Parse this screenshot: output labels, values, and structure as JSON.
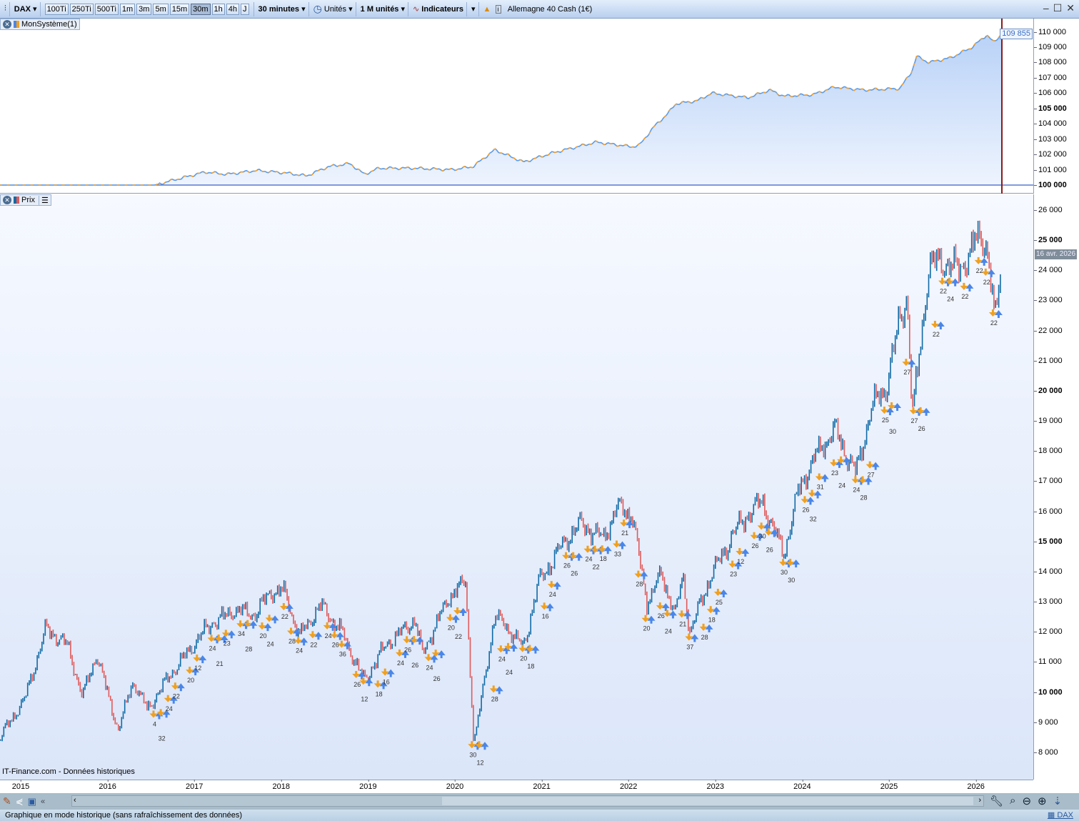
{
  "toolbar": {
    "symbol": "DAX",
    "periods": [
      "100Ti",
      "250Ti",
      "500Ti",
      "1m",
      "3m",
      "5m",
      "15m",
      "30m",
      "1h",
      "4h",
      "J"
    ],
    "active_period": "30m",
    "timeframe": "30 minutes",
    "units_label": "Unités",
    "units_count": "1 M unités",
    "indicators_label": "Indicateurs",
    "instrument": "Allemagne 40 Cash (1€)"
  },
  "equity_panel": {
    "title": "MonSystème(1)",
    "last_value": "109 855",
    "ticks": [
      "100 000",
      "101 000",
      "102 000",
      "103 000",
      "104 000",
      "105 000",
      "106 000",
      "107 000",
      "108 000",
      "109 000",
      "110 000"
    ],
    "colors": {
      "line": "#5b9be8",
      "alt": "#f0a030",
      "fill": "#cfe0fa",
      "cursor": "#8b1a1a"
    }
  },
  "price_panel": {
    "title": "Prix",
    "date_label": "16 avr. 2026",
    "ticks": [
      "8 000",
      "9 000",
      "10 000",
      "11 000",
      "12 000",
      "13 000",
      "14 000",
      "15 000",
      "16 000",
      "17 000",
      "18 000",
      "19 000",
      "20 000",
      "21 000",
      "22 000",
      "23 000",
      "24 000",
      "25 000",
      "26 000"
    ],
    "source": "IT-Finance.com - Données historiques",
    "colors": {
      "up": "#0f6aa6",
      "down": "#e05a5a",
      "sell_arrow": "#f0a020",
      "buy_arrow": "#4a86e8"
    }
  },
  "x_axis": [
    "2015",
    "2016",
    "2017",
    "2018",
    "2019",
    "2020",
    "2021",
    "2022",
    "2023",
    "2024",
    "2025",
    "2026"
  ],
  "status_bar": {
    "text": "Graphique en mode historique (sans rafraîchissement des données)",
    "symbol_link": "DAX"
  },
  "chart_data": [
    {
      "type": "area",
      "name": "MonSystème(1)",
      "ylim": [
        100000,
        110000
      ],
      "points": [
        [
          "2014-10",
          100000
        ],
        [
          "2016-07",
          100000
        ],
        [
          "2016-09",
          100250
        ],
        [
          "2017-02",
          100850
        ],
        [
          "2017-05",
          100700
        ],
        [
          "2017-09",
          100950
        ],
        [
          "2018-01",
          100800
        ],
        [
          "2018-04",
          100600
        ],
        [
          "2018-07",
          101200
        ],
        [
          "2018-10",
          101400
        ],
        [
          "2018-12",
          100700
        ],
        [
          "2019-02",
          101100
        ],
        [
          "2019-07",
          101100
        ],
        [
          "2019-12",
          101000
        ],
        [
          "2020-03",
          101200
        ],
        [
          "2020-06",
          102300
        ],
        [
          "2020-10",
          101500
        ],
        [
          "2021-02",
          102100
        ],
        [
          "2021-08",
          102800
        ],
        [
          "2022-01",
          102500
        ],
        [
          "2022-02",
          102600
        ],
        [
          "2022-04",
          103800
        ],
        [
          "2022-06",
          104700
        ],
        [
          "2022-07",
          105300
        ],
        [
          "2022-10",
          105500
        ],
        [
          "2022-12",
          106000
        ],
        [
          "2023-05",
          105700
        ],
        [
          "2023-08",
          106200
        ],
        [
          "2023-10",
          105800
        ],
        [
          "2024-02",
          105900
        ],
        [
          "2024-05",
          106400
        ],
        [
          "2024-09",
          106200
        ],
        [
          "2025-02",
          106300
        ],
        [
          "2025-04-05",
          107400
        ],
        [
          "2025-04-25",
          108400
        ],
        [
          "2025-06",
          108000
        ],
        [
          "2025-09",
          108300
        ],
        [
          "2025-12",
          109000
        ],
        [
          "2026-02",
          109800
        ],
        [
          "2026-03",
          109300
        ],
        [
          "2026-04-16",
          109855
        ]
      ]
    },
    {
      "type": "candlestick",
      "name": "Prix",
      "ylim": [
        7200,
        26500
      ],
      "points": [
        [
          "2014-10",
          8600
        ],
        [
          "2015-01",
          9700
        ],
        [
          "2015-04",
          12200
        ],
        [
          "2015-07",
          11500
        ],
        [
          "2015-09",
          9800
        ],
        [
          "2015-11",
          11300
        ],
        [
          "2016-02",
          8750
        ],
        [
          "2016-04",
          10300
        ],
        [
          "2016-06",
          9400
        ],
        [
          "2016-09",
          10600
        ],
        [
          "2016-12",
          11400
        ],
        [
          "2017-03",
          12300
        ],
        [
          "2017-06",
          12800
        ],
        [
          "2017-09",
          12500
        ],
        [
          "2017-11",
          13300
        ],
        [
          "2018-01",
          13400
        ],
        [
          "2018-03",
          11900
        ],
        [
          "2018-06",
          12800
        ],
        [
          "2018-09",
          12000
        ],
        [
          "2018-12",
          10400
        ],
        [
          "2019-03",
          11500
        ],
        [
          "2019-07",
          12500
        ],
        [
          "2019-08",
          11300
        ],
        [
          "2019-12",
          13200
        ],
        [
          "2020-02",
          13700
        ],
        [
          "2020-03-20",
          8300
        ],
        [
          "2020-06",
          12500
        ],
        [
          "2020-10",
          11500
        ],
        [
          "2020-12",
          13700
        ],
        [
          "2021-03",
          14700
        ],
        [
          "2021-06",
          15600
        ],
        [
          "2021-09",
          15200
        ],
        [
          "2021-11",
          16100
        ],
        [
          "2022-01",
          15800
        ],
        [
          "2022-03",
          13000
        ],
        [
          "2022-05",
          14000
        ],
        [
          "2022-07",
          12600
        ],
        [
          "2022-08",
          13800
        ],
        [
          "2022-09",
          11900
        ],
        [
          "2022-12",
          14000
        ],
        [
          "2023-03",
          15300
        ],
        [
          "2023-07",
          16300
        ],
        [
          "2023-10",
          14700
        ],
        [
          "2023-12",
          16700
        ],
        [
          "2024-03",
          18000
        ],
        [
          "2024-05",
          18800
        ],
        [
          "2024-08",
          17300
        ],
        [
          "2024-10",
          19300
        ],
        [
          "2024-12",
          20000
        ],
        [
          "2025-02",
          22500
        ],
        [
          "2025-03",
          23300
        ],
        [
          "2025-04-08",
          19200
        ],
        [
          "2025-06",
          24000
        ],
        [
          "2025-08",
          24200
        ],
        [
          "2025-10",
          24100
        ],
        [
          "2026-01",
          25200
        ],
        [
          "2026-02",
          24800
        ],
        [
          "2026-03-20",
          22100
        ],
        [
          "2026-04-16",
          24100
        ]
      ],
      "signals": [
        [
          "2016-07",
          "4"
        ],
        [
          "2016-08",
          "32"
        ],
        [
          "2016-09",
          "24"
        ],
        [
          "2016-10",
          "22"
        ],
        [
          "2016-12",
          "20"
        ],
        [
          "2017-01",
          "12"
        ],
        [
          "2017-03",
          "24"
        ],
        [
          "2017-04",
          "21"
        ],
        [
          "2017-05",
          "23"
        ],
        [
          "2017-07",
          "34"
        ],
        [
          "2017-08",
          "28"
        ],
        [
          "2017-10",
          "20"
        ],
        [
          "2017-11",
          "24"
        ],
        [
          "2018-01",
          "22"
        ],
        [
          "2018-02",
          "28"
        ],
        [
          "2018-03",
          "24"
        ],
        [
          "2018-05",
          "22"
        ],
        [
          "2018-07",
          "24"
        ],
        [
          "2018-08",
          "26"
        ],
        [
          "2018-09",
          "36"
        ],
        [
          "2018-11",
          "26"
        ],
        [
          "2018-12",
          "12"
        ],
        [
          "2019-02",
          "18"
        ],
        [
          "2019-03",
          "16"
        ],
        [
          "2019-05",
          "24"
        ],
        [
          "2019-06",
          "26"
        ],
        [
          "2019-07",
          "26"
        ],
        [
          "2019-09",
          "24"
        ],
        [
          "2019-10",
          "26"
        ],
        [
          "2019-12",
          "20"
        ],
        [
          "2020-01",
          "22"
        ],
        [
          "2020-03",
          "30"
        ],
        [
          "2020-04",
          "12"
        ],
        [
          "2020-06",
          "28"
        ],
        [
          "2020-07",
          "24"
        ],
        [
          "2020-08",
          "24"
        ],
        [
          "2020-10",
          "20"
        ],
        [
          "2020-11",
          "18"
        ],
        [
          "2021-01",
          "16"
        ],
        [
          "2021-02",
          "24"
        ],
        [
          "2021-04",
          "26"
        ],
        [
          "2021-05",
          "26"
        ],
        [
          "2021-07",
          "24"
        ],
        [
          "2021-08",
          "22"
        ],
        [
          "2021-09",
          "18"
        ],
        [
          "2021-11",
          "33"
        ],
        [
          "2021-12",
          "21"
        ],
        [
          "2022-02",
          "28"
        ],
        [
          "2022-03",
          "20"
        ],
        [
          "2022-05",
          "26"
        ],
        [
          "2022-06",
          "24"
        ],
        [
          "2022-08",
          "21"
        ],
        [
          "2022-09",
          "37"
        ],
        [
          "2022-11",
          "28"
        ],
        [
          "2022-12",
          "18"
        ],
        [
          "2023-01",
          "25"
        ],
        [
          "2023-03",
          "23"
        ],
        [
          "2023-04",
          "12"
        ],
        [
          "2023-06",
          "26"
        ],
        [
          "2023-07",
          "30"
        ],
        [
          "2023-08",
          "26"
        ],
        [
          "2023-10",
          "30"
        ],
        [
          "2023-11",
          "30"
        ],
        [
          "2024-01",
          "26"
        ],
        [
          "2024-02",
          "32"
        ],
        [
          "2024-03",
          "31"
        ],
        [
          "2024-05",
          "23"
        ],
        [
          "2024-06",
          "24"
        ],
        [
          "2024-08",
          "24"
        ],
        [
          "2024-09",
          "28"
        ],
        [
          "2024-10",
          "27"
        ],
        [
          "2024-12",
          "25"
        ],
        [
          "2025-01",
          "30"
        ],
        [
          "2025-03",
          "27"
        ],
        [
          "2025-04",
          "27"
        ],
        [
          "2025-05",
          "26"
        ],
        [
          "2025-07",
          "22"
        ],
        [
          "2025-08",
          "22"
        ],
        [
          "2025-09",
          "24"
        ],
        [
          "2025-11",
          "22"
        ],
        [
          "2026-01",
          "22"
        ],
        [
          "2026-02",
          "22"
        ],
        [
          "2026-03",
          "22"
        ]
      ]
    }
  ]
}
